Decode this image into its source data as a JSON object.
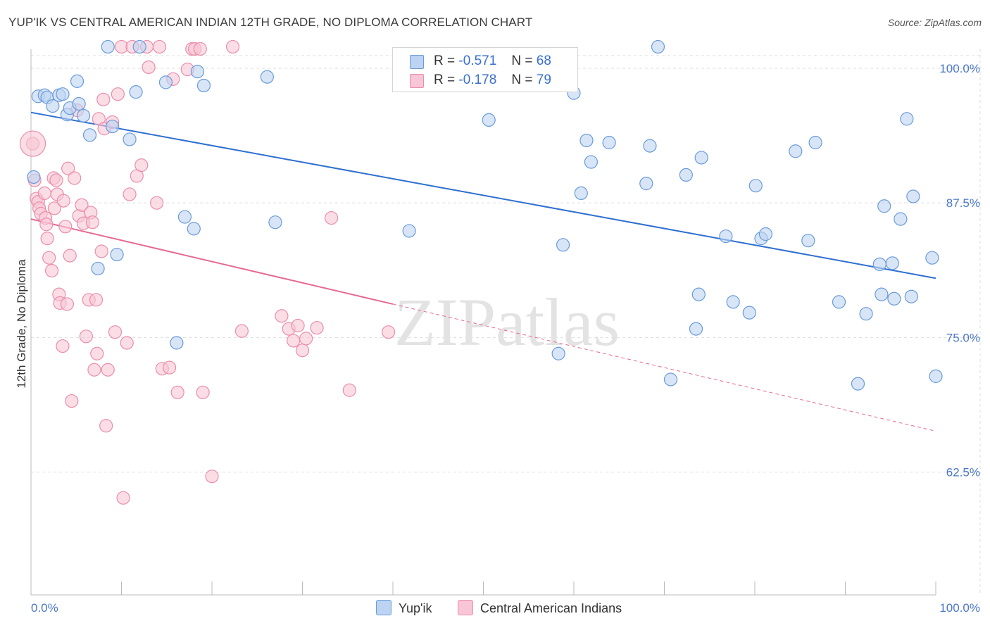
{
  "title": "YUP'IK VS CENTRAL AMERICAN INDIAN 12TH GRADE, NO DIPLOMA CORRELATION CHART",
  "source": "Source: ZipAtlas.com",
  "watermark": "ZIPatlas",
  "legend": {
    "rows": [
      {
        "r_label": "R =",
        "r_value": "-0.571",
        "n_label": "N =",
        "n_value": "68"
      },
      {
        "r_label": "R =",
        "r_value": "-0.178",
        "n_label": "N =",
        "n_value": "79"
      }
    ]
  },
  "bottom_legend": {
    "series1": "Yup'ik",
    "series2": "Central American Indians"
  },
  "colors": {
    "yupik_fill": "#bcd4f2",
    "yupik_stroke": "#6b9bd9",
    "yupik_line": "#2f6fcf",
    "cai_fill": "#f8c6d6",
    "cai_stroke": "#ea8eab",
    "cai_line": "#e66a93",
    "tick_text": "#4a78c9",
    "grid": "#dddddd"
  },
  "chart_data": {
    "type": "scatter",
    "title": "YUP'IK VS CENTRAL AMERICAN INDIAN 12TH GRADE, NO DIPLOMA CORRELATION CHART",
    "xlabel": "",
    "ylabel": "12th Grade, No Diploma",
    "xlim": [
      0,
      100
    ],
    "ylim": [
      51,
      102
    ],
    "x_tick_labels": [
      "0.0%",
      "100.0%"
    ],
    "y_ticks": [
      100.0,
      87.5,
      75.0,
      62.5
    ],
    "y_tick_labels": [
      "100.0%",
      "87.5%",
      "75.0%",
      "62.5%"
    ],
    "grid": true,
    "legend_position": "top-center",
    "series": [
      {
        "name": "Yup'ik",
        "r": -0.571,
        "n": 68,
        "trend": {
          "x": [
            0,
            100
          ],
          "y": [
            95.9,
            80.5
          ]
        },
        "points": [
          {
            "x": 0.3,
            "y": 89.9
          },
          {
            "x": 0.8,
            "y": 97.4
          },
          {
            "x": 1.5,
            "y": 97.5
          },
          {
            "x": 1.8,
            "y": 97.3
          },
          {
            "x": 2.4,
            "y": 96.5
          },
          {
            "x": 3.1,
            "y": 97.5
          },
          {
            "x": 3.5,
            "y": 97.6
          },
          {
            "x": 4.0,
            "y": 95.7
          },
          {
            "x": 4.3,
            "y": 96.3
          },
          {
            "x": 5.1,
            "y": 98.8
          },
          {
            "x": 5.3,
            "y": 96.7
          },
          {
            "x": 5.8,
            "y": 95.6
          },
          {
            "x": 6.5,
            "y": 93.8
          },
          {
            "x": 7.4,
            "y": 81.4
          },
          {
            "x": 8.5,
            "y": 102.0
          },
          {
            "x": 9.0,
            "y": 94.6
          },
          {
            "x": 9.5,
            "y": 82.7
          },
          {
            "x": 10.9,
            "y": 93.4
          },
          {
            "x": 11.6,
            "y": 97.8
          },
          {
            "x": 12.0,
            "y": 102.0
          },
          {
            "x": 14.9,
            "y": 98.7
          },
          {
            "x": 16.1,
            "y": 74.5
          },
          {
            "x": 17.0,
            "y": 86.2
          },
          {
            "x": 18.0,
            "y": 85.1
          },
          {
            "x": 18.4,
            "y": 99.7
          },
          {
            "x": 19.1,
            "y": 98.4
          },
          {
            "x": 26.1,
            "y": 99.2
          },
          {
            "x": 27.0,
            "y": 85.7
          },
          {
            "x": 41.8,
            "y": 84.9
          },
          {
            "x": 50.6,
            "y": 95.2
          },
          {
            "x": 58.3,
            "y": 73.5
          },
          {
            "x": 58.8,
            "y": 83.6
          },
          {
            "x": 60.0,
            "y": 97.7
          },
          {
            "x": 60.8,
            "y": 88.4
          },
          {
            "x": 61.4,
            "y": 93.3
          },
          {
            "x": 61.9,
            "y": 91.3
          },
          {
            "x": 63.9,
            "y": 93.1
          },
          {
            "x": 68.0,
            "y": 89.3
          },
          {
            "x": 68.4,
            "y": 92.8
          },
          {
            "x": 69.3,
            "y": 102.0
          },
          {
            "x": 70.7,
            "y": 71.1
          },
          {
            "x": 72.4,
            "y": 90.1
          },
          {
            "x": 73.5,
            "y": 75.8
          },
          {
            "x": 73.8,
            "y": 79.0
          },
          {
            "x": 74.1,
            "y": 91.7
          },
          {
            "x": 76.8,
            "y": 84.4
          },
          {
            "x": 77.6,
            "y": 78.3
          },
          {
            "x": 79.4,
            "y": 77.3
          },
          {
            "x": 80.1,
            "y": 89.1
          },
          {
            "x": 80.7,
            "y": 84.2
          },
          {
            "x": 81.2,
            "y": 84.6
          },
          {
            "x": 84.5,
            "y": 92.3
          },
          {
            "x": 85.9,
            "y": 84.0
          },
          {
            "x": 86.7,
            "y": 93.1
          },
          {
            "x": 89.3,
            "y": 78.3
          },
          {
            "x": 91.4,
            "y": 70.7
          },
          {
            "x": 92.3,
            "y": 77.2
          },
          {
            "x": 93.8,
            "y": 81.8
          },
          {
            "x": 94.0,
            "y": 79.0
          },
          {
            "x": 94.3,
            "y": 87.2
          },
          {
            "x": 95.2,
            "y": 81.9
          },
          {
            "x": 95.4,
            "y": 78.6
          },
          {
            "x": 96.1,
            "y": 86.0
          },
          {
            "x": 96.8,
            "y": 95.3
          },
          {
            "x": 97.3,
            "y": 78.8
          },
          {
            "x": 97.5,
            "y": 88.1
          },
          {
            "x": 99.6,
            "y": 82.4
          },
          {
            "x": 100.0,
            "y": 71.4
          }
        ]
      },
      {
        "name": "Central American Indians",
        "r": -0.178,
        "n": 79,
        "trend": {
          "x": [
            0,
            40
          ],
          "y": [
            86.0,
            78.1
          ]
        },
        "trend_dashed": {
          "x": [
            40,
            100
          ],
          "y": [
            78.1,
            66.3
          ]
        },
        "points": [
          {
            "x": 0.2,
            "y": 93.0
          },
          {
            "x": 0.4,
            "y": 89.6
          },
          {
            "x": 0.6,
            "y": 87.9
          },
          {
            "x": 0.8,
            "y": 87.6
          },
          {
            "x": 0.9,
            "y": 87.0
          },
          {
            "x": 1.1,
            "y": 86.5
          },
          {
            "x": 1.5,
            "y": 88.4
          },
          {
            "x": 1.6,
            "y": 86.1
          },
          {
            "x": 1.7,
            "y": 85.5
          },
          {
            "x": 1.8,
            "y": 84.2
          },
          {
            "x": 2.0,
            "y": 82.4
          },
          {
            "x": 2.3,
            "y": 81.2
          },
          {
            "x": 2.5,
            "y": 89.8
          },
          {
            "x": 2.6,
            "y": 87.0
          },
          {
            "x": 2.8,
            "y": 89.6
          },
          {
            "x": 2.9,
            "y": 88.3
          },
          {
            "x": 3.1,
            "y": 79.0
          },
          {
            "x": 3.2,
            "y": 78.2
          },
          {
            "x": 3.5,
            "y": 74.2
          },
          {
            "x": 3.6,
            "y": 87.7
          },
          {
            "x": 3.8,
            "y": 85.3
          },
          {
            "x": 4.0,
            "y": 78.1
          },
          {
            "x": 4.1,
            "y": 90.7
          },
          {
            "x": 4.3,
            "y": 82.6
          },
          {
            "x": 4.5,
            "y": 69.1
          },
          {
            "x": 4.8,
            "y": 89.8
          },
          {
            "x": 5.1,
            "y": 96.1
          },
          {
            "x": 5.3,
            "y": 86.3
          },
          {
            "x": 5.6,
            "y": 87.3
          },
          {
            "x": 5.8,
            "y": 85.6
          },
          {
            "x": 6.1,
            "y": 75.1
          },
          {
            "x": 6.4,
            "y": 78.5
          },
          {
            "x": 6.6,
            "y": 86.6
          },
          {
            "x": 6.8,
            "y": 85.7
          },
          {
            "x": 7.0,
            "y": 72.0
          },
          {
            "x": 7.3,
            "y": 73.5
          },
          {
            "x": 7.5,
            "y": 95.3
          },
          {
            "x": 7.8,
            "y": 83.0
          },
          {
            "x": 8.0,
            "y": 97.1
          },
          {
            "x": 8.1,
            "y": 94.4
          },
          {
            "x": 8.3,
            "y": 66.8
          },
          {
            "x": 8.5,
            "y": 72.0
          },
          {
            "x": 9.0,
            "y": 95.0
          },
          {
            "x": 9.3,
            "y": 75.5
          },
          {
            "x": 9.6,
            "y": 97.6
          },
          {
            "x": 10.0,
            "y": 102.0
          },
          {
            "x": 10.2,
            "y": 60.1
          },
          {
            "x": 10.6,
            "y": 74.5
          },
          {
            "x": 10.9,
            "y": 88.3
          },
          {
            "x": 11.2,
            "y": 102.0
          },
          {
            "x": 11.7,
            "y": 90.0
          },
          {
            "x": 12.2,
            "y": 91.0
          },
          {
            "x": 12.8,
            "y": 102.0
          },
          {
            "x": 13.0,
            "y": 100.1
          },
          {
            "x": 13.9,
            "y": 87.5
          },
          {
            "x": 14.2,
            "y": 102.0
          },
          {
            "x": 14.5,
            "y": 72.1
          },
          {
            "x": 15.3,
            "y": 72.2
          },
          {
            "x": 15.7,
            "y": 99.0
          },
          {
            "x": 16.2,
            "y": 69.9
          },
          {
            "x": 17.3,
            "y": 99.9
          },
          {
            "x": 17.8,
            "y": 101.8
          },
          {
            "x": 18.1,
            "y": 101.8
          },
          {
            "x": 18.7,
            "y": 101.8
          },
          {
            "x": 19.0,
            "y": 69.9
          },
          {
            "x": 20.0,
            "y": 62.1
          },
          {
            "x": 22.3,
            "y": 102.0
          },
          {
            "x": 23.3,
            "y": 75.6
          },
          {
            "x": 27.7,
            "y": 77.0
          },
          {
            "x": 28.5,
            "y": 75.8
          },
          {
            "x": 29.0,
            "y": 74.7
          },
          {
            "x": 29.5,
            "y": 76.1
          },
          {
            "x": 30.0,
            "y": 73.8
          },
          {
            "x": 30.4,
            "y": 74.9
          },
          {
            "x": 31.6,
            "y": 75.9
          },
          {
            "x": 33.2,
            "y": 86.1
          },
          {
            "x": 35.2,
            "y": 70.1
          },
          {
            "x": 39.5,
            "y": 75.5
          },
          {
            "x": 7.2,
            "y": 78.5
          }
        ]
      }
    ]
  }
}
